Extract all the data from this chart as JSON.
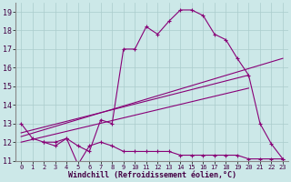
{
  "xlabel": "Windchill (Refroidissement éolien,°C)",
  "bg_color": "#cce8e8",
  "grid_color": "#aacccc",
  "line_color": "#880077",
  "xlim": [
    -0.5,
    23.5
  ],
  "ylim": [
    11,
    19.5
  ],
  "xticks": [
    0,
    1,
    2,
    3,
    4,
    5,
    6,
    7,
    8,
    9,
    10,
    11,
    12,
    13,
    14,
    15,
    16,
    17,
    18,
    19,
    20,
    21,
    22,
    23
  ],
  "yticks": [
    11,
    12,
    13,
    14,
    15,
    16,
    17,
    18,
    19
  ],
  "line1_x": [
    0,
    1,
    2,
    3,
    4,
    5,
    6,
    7,
    8,
    9,
    10,
    11,
    12,
    13,
    14,
    15,
    16,
    17,
    18,
    19,
    20,
    21,
    22,
    23
  ],
  "line1_y": [
    13.0,
    12.2,
    12.0,
    12.0,
    12.2,
    11.8,
    11.5,
    13.2,
    13.0,
    17.0,
    17.0,
    18.2,
    17.8,
    18.5,
    19.1,
    19.1,
    18.8,
    17.8,
    17.5,
    16.5,
    15.6,
    13.0,
    11.9,
    11.1
  ],
  "line2_x": [
    2,
    3,
    4,
    5,
    6,
    7,
    8,
    9,
    10,
    11,
    12,
    13,
    14,
    15,
    16,
    17,
    18,
    19,
    20,
    21,
    22,
    23
  ],
  "line2_y": [
    12.0,
    11.8,
    12.2,
    10.8,
    11.8,
    12.0,
    11.8,
    11.5,
    11.5,
    11.5,
    11.5,
    11.5,
    11.3,
    11.3,
    11.3,
    11.3,
    11.3,
    11.3,
    11.1,
    11.1,
    11.1,
    11.1
  ],
  "line3_x": [
    0,
    20
  ],
  "line3_y": [
    12.5,
    15.6
  ],
  "line4_x": [
    0,
    20
  ],
  "line4_y": [
    12.0,
    14.9
  ],
  "line5_x": [
    0,
    23
  ],
  "line5_y": [
    12.3,
    16.5
  ],
  "marker": "+"
}
